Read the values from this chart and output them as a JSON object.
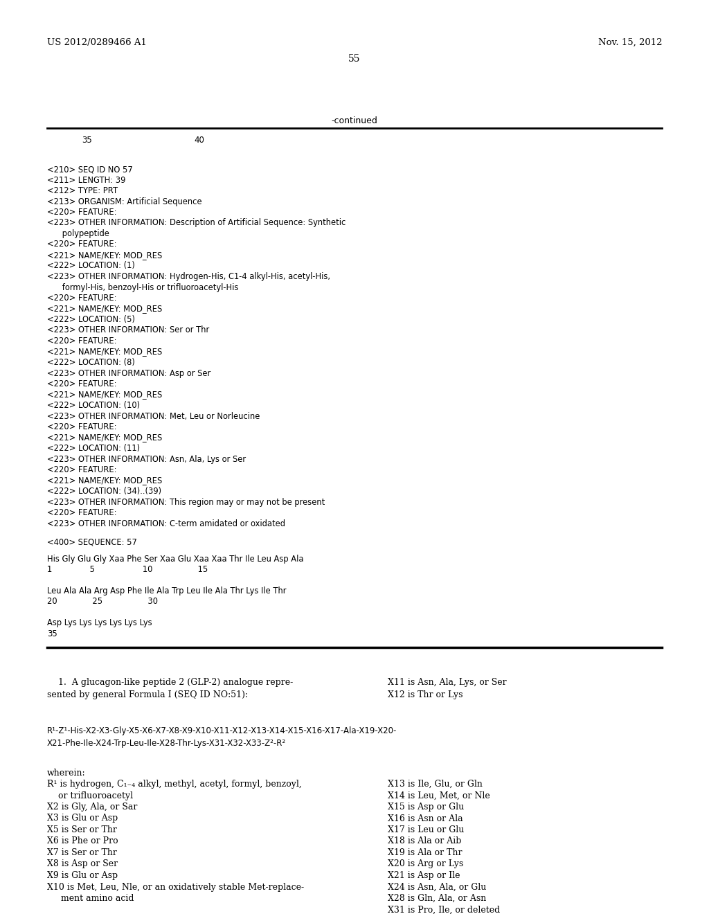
{
  "bg_color": "#ffffff",
  "header_left": "US 2012/0289466 A1",
  "header_right": "Nov. 15, 2012",
  "page_number": "55",
  "continued_label": "-continued",
  "seq_block": [
    "<210> SEQ ID NO 57",
    "<211> LENGTH: 39",
    "<212> TYPE: PRT",
    "<213> ORGANISM: Artificial Sequence",
    "<220> FEATURE:",
    "<223> OTHER INFORMATION: Description of Artificial Sequence: Synthetic",
    "      polypeptide",
    "<220> FEATURE:",
    "<221> NAME/KEY: MOD_RES",
    "<222> LOCATION: (1)",
    "<223> OTHER INFORMATION: Hydrogen-His, C1-4 alkyl-His, acetyl-His,",
    "      formyl-His, benzoyl-His or trifluoroacetyl-His",
    "<220> FEATURE:",
    "<221> NAME/KEY: MOD_RES",
    "<222> LOCATION: (5)",
    "<223> OTHER INFORMATION: Ser or Thr",
    "<220> FEATURE:",
    "<221> NAME/KEY: MOD_RES",
    "<222> LOCATION: (8)",
    "<223> OTHER INFORMATION: Asp or Ser",
    "<220> FEATURE:",
    "<221> NAME/KEY: MOD_RES",
    "<222> LOCATION: (10)",
    "<223> OTHER INFORMATION: Met, Leu or Norleucine",
    "<220> FEATURE:",
    "<221> NAME/KEY: MOD_RES",
    "<222> LOCATION: (11)",
    "<223> OTHER INFORMATION: Asn, Ala, Lys or Ser",
    "<220> FEATURE:",
    "<221> NAME/KEY: MOD_RES",
    "<222> LOCATION: (34)..(39)",
    "<223> OTHER INFORMATION: This region may or may not be present",
    "<220> FEATURE:",
    "<223> OTHER INFORMATION: C-term amidated or oxidated"
  ],
  "seq400_label": "<400> SEQUENCE: 57",
  "seq_lines": [
    "His Gly Glu Gly Xaa Phe Ser Xaa Glu Xaa Xaa Thr Ile Leu Asp Ala",
    "1               5                   10                  15",
    "",
    "Leu Ala Ala Arg Asp Phe Ile Ala Trp Leu Ile Ala Thr Lys Ile Thr",
    "20              25                  30",
    "",
    "Asp Lys Lys Lys Lys Lys Lys",
    "35"
  ],
  "claims_col1_line1": "    1.  A glucagon-like peptide 2 (GLP-2) analogue repre-",
  "claims_col1_line2": "sented by general Formula I (SEQ ID NO:51):",
  "claims_col2_line1": "X11 is Asn, Ala, Lys, or Ser",
  "claims_col2_line2": "X12 is Thr or Lys",
  "formula_line1": "R¹-Z¹-His-X2-X3-Gly-X5-X6-X7-X8-X9-X10-X11-X12-X13-X14-X15-X16-X17-Ala-X19-X20-",
  "formula_line2": "X21-Phe-Ile-X24-Trp-Leu-Ile-X28-Thr-Lys-X31-X32-X33-Z²-R²",
  "wherein_col1": [
    "wherein:",
    "R¹ is hydrogen, C₁₋₄ alkyl, methyl, acetyl, formyl, benzoyl,",
    "    or trifluoroacetyl",
    "X2 is Gly, Ala, or Sar",
    "X3 is Glu or Asp",
    "X5 is Ser or Thr",
    "X6 is Phe or Pro",
    "X7 is Ser or Thr",
    "X8 is Asp or Ser",
    "X9 is Glu or Asp",
    "X10 is Met, Leu, Nle, or an oxidatively stable Met-replace-",
    "     ment amino acid"
  ],
  "wherein_col2": [
    "X13 is Ile, Glu, or Gln",
    "X14 is Leu, Met, or Nle",
    "X15 is Asp or Glu",
    "X16 is Asn or Ala",
    "X17 is Leu or Glu",
    "X18 is Ala or Aib",
    "X19 is Ala or Thr",
    "X20 is Arg or Lys",
    "X21 is Asp or Ile",
    "X24 is Asn, Ala, or Glu",
    "X28 is Gln, Ala, or Asn",
    "X31 is Pro, Ile, or deleted"
  ]
}
